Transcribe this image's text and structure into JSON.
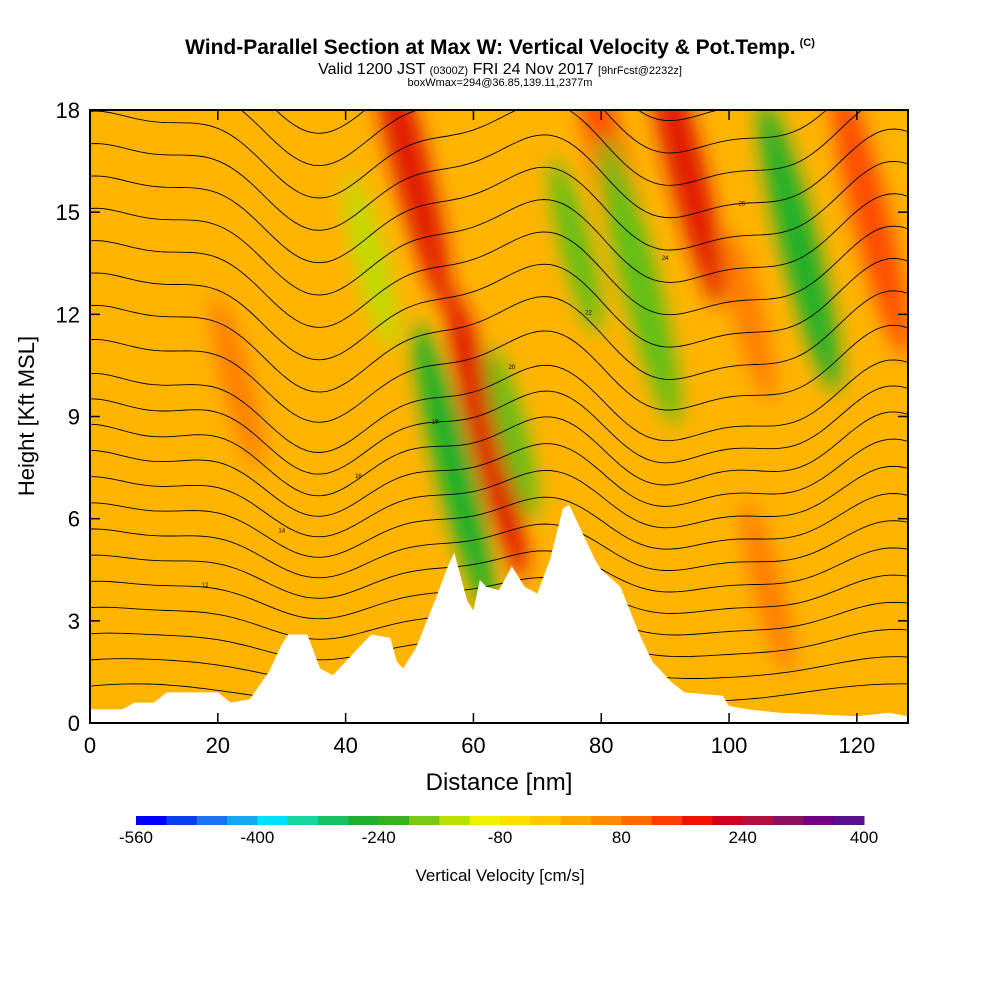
{
  "titles": {
    "main": "Wind-Parallel Section at Max W: Vertical Velocity & Pot.Temp.",
    "main_tag": "(C)",
    "sub_a": "Valid 1200 JST",
    "sub_b": "(0300Z)",
    "sub_c": "FRI 24 Nov 2017",
    "sub_d": "[9hrFcst@2232z]",
    "sub2": "boxWmax=294@36.85,139.11,2377m"
  },
  "chart_data": {
    "type": "heatmap",
    "xlabel": "Distance [nm]",
    "ylabel": "Height [Kft MSL]",
    "xlim": [
      0,
      128
    ],
    "ylim": [
      0,
      18
    ],
    "xticks": [
      0,
      20,
      40,
      60,
      80,
      100,
      120
    ],
    "yticks": [
      0,
      3,
      6,
      9,
      12,
      15,
      18
    ],
    "colorbar": {
      "label": "Vertical Velocity [cm/s]",
      "tick_labels": [
        "-560",
        "-400",
        "-240",
        "-80",
        "80",
        "240",
        "400"
      ],
      "colors": [
        "#0000ff",
        "#0a3cf0",
        "#1874f0",
        "#14a8f0",
        "#00e0ff",
        "#16d6a0",
        "#18c060",
        "#1fb030",
        "#38b020",
        "#78c818",
        "#b8e000",
        "#f0f000",
        "#ffe000",
        "#ffc800",
        "#ffa800",
        "#ff8c00",
        "#ff6a00",
        "#ff3c00",
        "#f01000",
        "#d00020",
        "#b01040",
        "#8a1060",
        "#700080",
        "#58108a"
      ]
    },
    "terrain_kft": [
      [
        0,
        0.4
      ],
      [
        5,
        0.4
      ],
      [
        7,
        0.6
      ],
      [
        10,
        0.6
      ],
      [
        12,
        0.9
      ],
      [
        20,
        0.9
      ],
      [
        22,
        0.6
      ],
      [
        25,
        0.7
      ],
      [
        28,
        1.5
      ],
      [
        30,
        2.3
      ],
      [
        31,
        2.6
      ],
      [
        34,
        2.6
      ],
      [
        36,
        1.6
      ],
      [
        38,
        1.4
      ],
      [
        41,
        2.0
      ],
      [
        43,
        2.4
      ],
      [
        44,
        2.6
      ],
      [
        47,
        2.5
      ],
      [
        48,
        1.8
      ],
      [
        49,
        1.6
      ],
      [
        51,
        2.2
      ],
      [
        54,
        3.6
      ],
      [
        56,
        4.6
      ],
      [
        57,
        5.0
      ],
      [
        59,
        3.6
      ],
      [
        60,
        3.3
      ],
      [
        61,
        4.2
      ],
      [
        62,
        4.0
      ],
      [
        64,
        3.9
      ],
      [
        66,
        4.6
      ],
      [
        68,
        4.0
      ],
      [
        70,
        3.8
      ],
      [
        72,
        4.8
      ],
      [
        74,
        6.3
      ],
      [
        75,
        6.4
      ],
      [
        77,
        5.6
      ],
      [
        79,
        4.8
      ],
      [
        80,
        4.5
      ],
      [
        83,
        4.0
      ],
      [
        86,
        2.6
      ],
      [
        88,
        1.8
      ],
      [
        91,
        1.2
      ],
      [
        93,
        0.9
      ],
      [
        99,
        0.8
      ],
      [
        100,
        0.5
      ],
      [
        103,
        0.4
      ],
      [
        108,
        0.3
      ],
      [
        120,
        0.2
      ],
      [
        125,
        0.3
      ],
      [
        128,
        0.2
      ]
    ],
    "updrafts_cms": [
      {
        "x": 62,
        "z": 8.5,
        "w": 300
      },
      {
        "x": 50,
        "z": 16.5,
        "w": 260
      },
      {
        "x": 82,
        "z": 16.0,
        "w": 220
      },
      {
        "x": 93,
        "z": 16.5,
        "w": 300
      },
      {
        "x": 103,
        "z": 12.0,
        "w": 140
      },
      {
        "x": 122,
        "z": 15.0,
        "w": 250
      },
      {
        "x": 23,
        "z": 10.0,
        "w": 120
      },
      {
        "x": 106,
        "z": 4.0,
        "w": 120
      }
    ],
    "downdrafts_cms": [
      {
        "x": 57,
        "z": 7.5,
        "w": -300
      },
      {
        "x": 66,
        "z": 8.5,
        "w": -200
      },
      {
        "x": 76,
        "z": 14.0,
        "w": -200
      },
      {
        "x": 86,
        "z": 13.0,
        "w": -240
      },
      {
        "x": 111,
        "z": 14.0,
        "w": -320
      },
      {
        "x": 44,
        "z": 13.5,
        "w": -140
      }
    ],
    "theta_contour_labels": [
      "12",
      "14",
      "16",
      "18",
      "20",
      "22",
      "24",
      "26"
    ]
  }
}
